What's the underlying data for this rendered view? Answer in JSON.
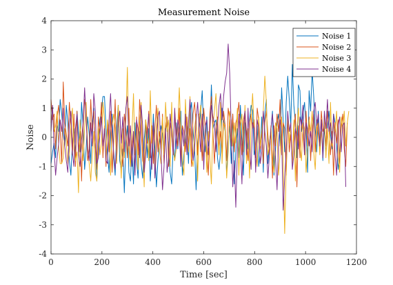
{
  "chart_data": {
    "type": "line",
    "title": "Measurement Noise",
    "xlabel": "Time [sec]",
    "ylabel": "Noise",
    "xlim": [
      0,
      1200
    ],
    "ylim": [
      -4,
      4
    ],
    "xticks": [
      0,
      200,
      400,
      600,
      800,
      1000,
      1200
    ],
    "yticks": [
      -4,
      -3,
      -2,
      -1,
      0,
      1,
      2,
      3,
      4
    ],
    "grid": false,
    "legend_position": "top-right",
    "x_step": 6,
    "series": [
      {
        "name": "Noise 1",
        "color": "#0072BD",
        "values": [
          -0.9,
          -0.5,
          -0.2,
          -0.7,
          0.4,
          0.2,
          1.3,
          0.8,
          0.1,
          -0.3,
          1.1,
          0.5,
          -0.8,
          -1.3,
          -0.2,
          0.3,
          -0.6,
          0.9,
          0.2,
          -0.5,
          1.2,
          0.4,
          -1.1,
          -0.4,
          0.7,
          0.1,
          -0.9,
          0.5,
          1.0,
          -0.3,
          -1.5,
          -0.2,
          0.6,
          0.9,
          1.4,
          1.4,
          0.3,
          -0.6,
          -1.2,
          0.1,
          0.8,
          -0.7,
          -1.3,
          0.3,
          1.1,
          -0.8,
          -1.1,
          -0.4,
          -1.9,
          -0.2,
          0.4,
          -1.2,
          -1.5,
          -0.3,
          -1.6,
          0.5,
          -0.8,
          -1.4,
          0.2,
          -0.9,
          -1.4,
          -0.1,
          0.6,
          -0.7,
          0.3,
          -1.5,
          -0.6,
          0.8,
          -0.4,
          -1.7,
          -0.8,
          -0.2,
          0.4,
          0.1,
          -0.6,
          0.2,
          0.7,
          -0.5,
          -1.2,
          -1.6,
          -0.3,
          -0.8,
          0.5,
          -0.4,
          0.3,
          0.9,
          -1.3,
          -0.6,
          -0.1,
          0.4,
          -0.9,
          0.8,
          1.2,
          0.2,
          -0.4,
          -1.8,
          -0.2,
          0.3,
          0.9,
          1.6,
          0.1,
          -0.5,
          0.7,
          -0.3,
          0.2,
          1.8,
          0.3,
          0.5,
          0.6,
          -0.7,
          -1.1,
          -0.5,
          1.0,
          0.6,
          0.2,
          -1.3,
          -0.2,
          0.4,
          -0.9,
          0.8,
          -1.6,
          -0.5,
          0.3,
          -0.7,
          1.1,
          -0.2,
          -1.3,
          0.5,
          0.2,
          -0.4,
          0.6,
          1.1,
          0.9,
          -0.6,
          -0.3,
          0.4,
          -1.0,
          -0.5,
          0.7,
          -1.2,
          0.8,
          1.3,
          -0.9,
          -0.2,
          0.3,
          0.9,
          -1.3,
          -0.4,
          0.5,
          0.8,
          -0.3,
          1.7,
          0.6,
          -0.5,
          1.2,
          2.1,
          1.3,
          0.4,
          2.5,
          1.1,
          0.5,
          -0.7,
          1.8,
          1.6,
          0.2,
          0.8,
          1.2,
          0.4,
          -1.2,
          1.6,
          0.9,
          2.3,
          1.4,
          0.3,
          -0.5,
          0.9,
          -0.2,
          0.6,
          -0.8,
          0.4,
          -0.6,
          0.3,
          0.9,
          0.1,
          -0.4,
          0.8,
          0.5,
          -0.3,
          -1.1,
          -0.6,
          0.4
        ]
      },
      {
        "name": "Noise 2",
        "color": "#D95319",
        "values": [
          1.3,
          0.6,
          0.8,
          -0.4,
          0.7,
          1.1,
          0.2,
          -0.9,
          1.9,
          0.5,
          0.1,
          -0.3,
          1.2,
          0.4,
          -0.6,
          0.8,
          -1.0,
          0.9,
          -0.5,
          0.2,
          -1.5,
          0.3,
          1.3,
          0.9,
          -0.8,
          -0.4,
          1.3,
          0.2,
          0.9,
          -0.3,
          -1.1,
          0.7,
          0.1,
          1.2,
          -0.7,
          0.4,
          -1.0,
          0.5,
          -0.5,
          0.9,
          -1.2,
          -0.2,
          1.3,
          -0.8,
          0.6,
          0.9,
          -0.4,
          -1.0,
          0.8,
          0.3,
          -0.7,
          1.0,
          -0.9,
          -0.3,
          0.2,
          -1.2,
          0.7,
          -0.6,
          1.3,
          0.3,
          -0.8,
          -1.0,
          0.6,
          -0.2,
          0.9,
          -0.7,
          0.4,
          -0.9,
          0.3,
          1.1,
          -0.5,
          0.2,
          -0.4,
          0.8,
          -0.9,
          0.3,
          0.7,
          -1.0,
          0.5,
          0.1,
          -0.6,
          0.9,
          0.2,
          -0.3,
          1.0,
          -0.8,
          0.4,
          0.2,
          -0.5,
          0.7,
          -0.3,
          0.3,
          -1.0,
          0.8,
          1.2,
          0.4,
          -0.6,
          0.8,
          0.2,
          -0.8,
          1.0,
          0.3,
          -0.5,
          -1.3,
          0.8,
          1.4,
          0.2,
          -0.9,
          0.3,
          0.7,
          -0.4,
          0.2,
          -0.6,
          0.9,
          0.4,
          -0.8,
          1.0,
          0.6,
          -0.3,
          0.8,
          -0.5,
          0.5,
          0.7,
          1.2,
          0.3,
          -0.6,
          0.6,
          0.9,
          0.1,
          -0.8,
          0.5,
          0.8,
          0.3,
          0.6,
          -0.7,
          1.0,
          0.6,
          -0.4,
          0.2,
          -0.9,
          0.5,
          0.9,
          0.1,
          -0.6,
          0.3,
          -1.4,
          0.4,
          -0.3,
          0.8,
          0.2,
          1.3,
          -0.6,
          0.5,
          0.3,
          -1.3,
          0.7,
          -0.5,
          0.1,
          -0.9,
          0.2,
          0.8,
          -1.7,
          0.4,
          -0.7,
          0.6,
          0.1,
          -0.6,
          0.9,
          -0.3,
          0.7,
          -0.8,
          0.4,
          0.8,
          -0.5,
          0.6,
          0.1,
          -0.4,
          0.9,
          0.2,
          0.4,
          -0.3,
          0.9,
          0.3,
          -0.6,
          0.2,
          -1.3,
          0.5,
          -0.2,
          0.6,
          -0.9,
          0.3,
          0.8,
          -0.4,
          -1.0,
          0.5
        ]
      },
      {
        "name": "Noise 3",
        "color": "#EDB120",
        "values": [
          0.5,
          1.0,
          0.2,
          0.4,
          0.9,
          -0.3,
          -0.9,
          -0.9,
          -0.7,
          0.3,
          -0.2,
          -0.9,
          -0.5,
          0.4,
          1.0,
          -0.4,
          -0.8,
          -0.5,
          -1.9,
          0.6,
          -0.2,
          -0.8,
          0.3,
          1.2,
          -0.3,
          -0.9,
          -1.5,
          -0.6,
          0.2,
          -1.2,
          -1.5,
          0.3,
          -0.6,
          -0.2,
          1.2,
          0.6,
          -0.8,
          0.6,
          0.2,
          -1.3,
          0.4,
          0.8,
          0.3,
          -0.9,
          1.1,
          -0.2,
          -1.4,
          0.3,
          -0.7,
          0.6,
          2.4,
          -0.4,
          -1.0,
          0.2,
          1.5,
          -0.6,
          0.3,
          -1.1,
          0.5,
          1.2,
          -0.4,
          -1.7,
          0.6,
          0.2,
          -0.8,
          1.6,
          -0.2,
          0.4,
          -1.1,
          0.3,
          1.0,
          -0.5,
          -0.9,
          0.7,
          -0.6,
          1.2,
          0.2,
          0.6,
          -1.0,
          1.2,
          -0.4,
          -0.8,
          -0.4,
          0.4,
          1.7,
          0.3,
          -0.8,
          -1.3,
          1.3,
          0.1,
          -0.5,
          1.4,
          -0.7,
          -1.0,
          0.3,
          0.8,
          -1.5,
          0.7,
          1.1,
          -0.3,
          -0.8,
          0.4,
          -1.2,
          0.2,
          -0.7,
          -1.6,
          0.4,
          0.9,
          1.5,
          0.2,
          -0.6,
          1.2,
          -0.9,
          0.5,
          0.3,
          -1.4,
          -0.5,
          0.9,
          0.6,
          -0.3,
          0.5,
          -0.2,
          1.0,
          -1.3,
          0.4,
          0.8,
          -0.5,
          1.1,
          -0.9,
          0.3,
          -1.4,
          0.6,
          1.5,
          0.3,
          -0.4,
          -1.0,
          0.7,
          -0.3,
          0.2,
          0.9,
          2.1,
          1.2,
          -0.6,
          -0.3,
          0.4,
          -0.8,
          -1.2,
          0.5,
          0.3,
          -1.3,
          -0.5,
          0.7,
          -0.8,
          -3.3,
          -1.1,
          0.8,
          -0.2,
          0.4,
          -0.9,
          0.6,
          -1.5,
          0.3,
          1.0,
          -0.3,
          -0.8,
          0.5,
          0.3,
          -1.2,
          -0.4,
          0.6,
          0.2,
          0.9,
          -0.5,
          -1.1,
          0.3,
          0.5,
          -0.6,
          0.2,
          -0.4,
          0.8,
          -0.7,
          0.3,
          -0.9,
          1.2,
          -0.3,
          0.5,
          0.2,
          0.9,
          -0.6,
          -1.2,
          0.7,
          0.3,
          0.9,
          -0.3,
          0.5,
          0.9
        ]
      },
      {
        "name": "Noise 4",
        "color": "#7E2F8E",
        "values": [
          0.2,
          1.1,
          -0.4,
          -1.3,
          -0.7,
          -0.2,
          0.6,
          0.2,
          1.0,
          -0.3,
          -0.8,
          -1.2,
          0.4,
          0.9,
          -0.5,
          -1.0,
          0.3,
          0.8,
          -0.6,
          -1.0,
          -0.1,
          0.5,
          1.7,
          0.6,
          -0.4,
          -0.8,
          0.5,
          -0.3,
          1.5,
          0.9,
          -0.9,
          -0.7,
          0.1,
          0.7,
          -0.3,
          0.3,
          -0.8,
          -0.9,
          0.6,
          1.5,
          0.2,
          -0.5,
          -1.1,
          -0.4,
          0.5,
          0.9,
          -0.2,
          0.7,
          -0.5,
          1.0,
          1.4,
          -0.3,
          0.4,
          -1.0,
          0.2,
          -1.3,
          0.6,
          0.3,
          -0.7,
          1.1,
          0.4,
          -1.2,
          -0.6,
          0.2,
          0.8,
          -0.3,
          -1.1,
          0.5,
          -1.4,
          -0.4,
          0.7,
          0.9,
          -0.5,
          -1.8,
          -1.0,
          0.3,
          -1.2,
          -0.7,
          0.8,
          0.2,
          -0.6,
          1.0,
          -0.4,
          0.6,
          0.2,
          -1.0,
          0.3,
          -0.3,
          0.8,
          -0.6,
          0.5,
          1.3,
          0.2,
          -0.8,
          -0.4,
          0.6,
          1.2,
          0.3,
          -0.5,
          0.8,
          -1.1,
          0.4,
          0.6,
          -0.6,
          0.2,
          1.1,
          0.7,
          0.5,
          -0.5,
          0.4,
          1.1,
          1.5,
          0.6,
          1.4,
          1.9,
          2.2,
          3.2,
          2.2,
          0.3,
          -1.7,
          -0.8,
          -2.4,
          -0.5,
          0.8,
          -0.3,
          -1.6,
          0.2,
          0.9,
          -0.6,
          1.0,
          -0.4,
          -1.1,
          0.5,
          0.3,
          -1.2,
          0.6,
          0.3,
          -0.9,
          -0.5,
          0.9,
          0.2,
          -0.3,
          -1.4,
          -0.6,
          0.3,
          0.8,
          0.1,
          -0.7,
          -1.8,
          -0.2,
          0.6,
          0.1,
          -2.5,
          -1.4,
          -0.5,
          0.9,
          0.2,
          0.5,
          -1.1,
          -0.6,
          0.3,
          0.1,
          -0.4,
          0.7,
          0.4,
          1.1,
          -0.6,
          0.5,
          0.3,
          -0.3,
          0.2,
          -0.5,
          0.9,
          1.2,
          0.4,
          0.8,
          -0.3,
          0.6,
          -0.7,
          0.9,
          0.3,
          1.3,
          0.2,
          0.5,
          -0.2,
          0.8,
          -0.6,
          -1.3,
          0.4,
          0.7,
          -0.5,
          0.4,
          0.5,
          -1.7
        ]
      }
    ]
  }
}
